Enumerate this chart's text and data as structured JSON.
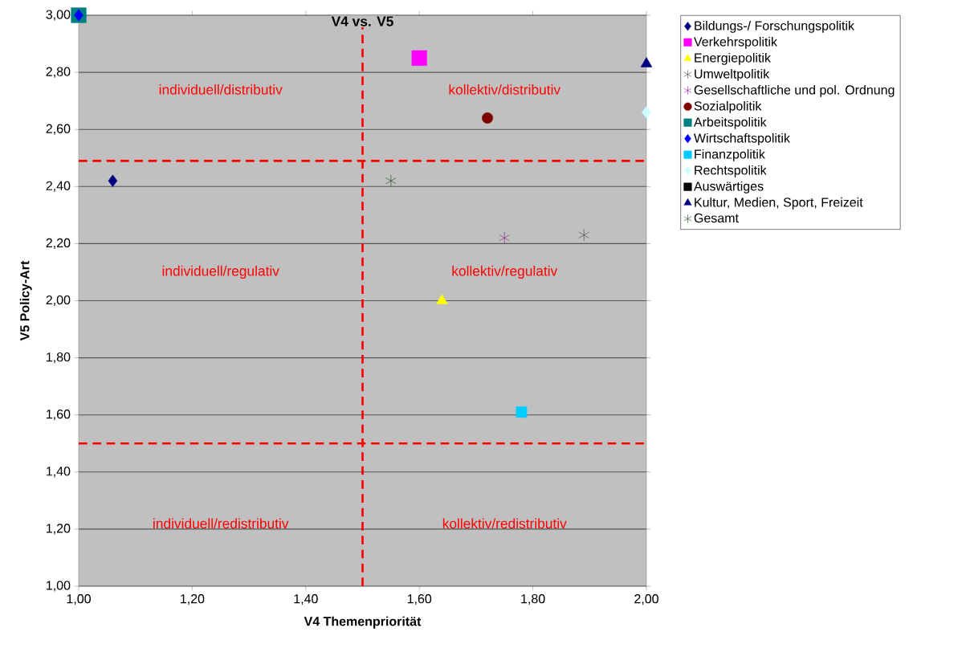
{
  "chart_data": {
    "type": "scatter",
    "title": "V4 vs. V5",
    "xlabel": "V4 Themenpriorität",
    "ylabel": "V5 Policy-Art",
    "xlim": [
      1,
      2
    ],
    "ylim": [
      1,
      3
    ],
    "xticks": [
      {
        "value": 1,
        "label": "1,00"
      },
      {
        "value": 1.2,
        "label": "1,20"
      },
      {
        "value": 1.4,
        "label": "1,40"
      },
      {
        "value": 1.6,
        "label": "1,60"
      },
      {
        "value": 1.8,
        "label": "1,80"
      },
      {
        "value": 2,
        "label": "2,00"
      }
    ],
    "yticks": [
      {
        "value": 1,
        "label": "1,00"
      },
      {
        "value": 1.2,
        "label": "1,20"
      },
      {
        "value": 1.4,
        "label": "1,40"
      },
      {
        "value": 1.6,
        "label": "1,60"
      },
      {
        "value": 1.8,
        "label": "1,80"
      },
      {
        "value": 2,
        "label": "2,00"
      },
      {
        "value": 2.2,
        "label": "2,20"
      },
      {
        "value": 2.4,
        "label": "2,40"
      },
      {
        "value": 2.6,
        "label": "2,60"
      },
      {
        "value": 2.8,
        "label": "2,80"
      },
      {
        "value": 3,
        "label": "3,00"
      }
    ],
    "grid": "y",
    "legend": "right",
    "series": [
      {
        "name": "Bildungs-/ Forschungspolitik",
        "color": "#000080",
        "marker": "diamond",
        "x": [
          1.06
        ],
        "values": [
          2.42
        ]
      },
      {
        "name": "Verkehrspolitik",
        "color": "#ff00ff",
        "marker": "square",
        "x": [
          1.6
        ],
        "values": [
          2.85
        ]
      },
      {
        "name": "Energiepolitik",
        "color": "#ffff00",
        "marker": "triangle",
        "x": [
          1.64
        ],
        "values": [
          2.0
        ]
      },
      {
        "name": "Umweltpolitik",
        "color": "#333333",
        "marker": "cross",
        "x": [
          1.89
        ],
        "values": [
          2.23
        ]
      },
      {
        "name": "Gesellschaftliche und pol. Ordnung",
        "color": "#800080",
        "marker": "cross",
        "x": [
          1.75
        ],
        "values": [
          2.22
        ]
      },
      {
        "name": "Sozialpolitik",
        "color": "#800000",
        "marker": "circle",
        "x": [
          1.72
        ],
        "values": [
          2.64
        ]
      },
      {
        "name": "Arbeitspolitik",
        "color": "#008080",
        "marker": "square",
        "x": [
          1.0
        ],
        "values": [
          3.0
        ]
      },
      {
        "name": "Wirtschaftspolitik",
        "color": "#0000ff",
        "marker": "diamond",
        "x": [
          1.0
        ],
        "values": [
          3.0
        ]
      },
      {
        "name": "Finanzpolitik",
        "color": "#00ccff",
        "x": [
          1.78
        ],
        "values": [
          1.61
        ]
      },
      {
        "name": "Rechtspolitik",
        "color": "#ccffff",
        "marker": "diamond",
        "x": [
          2.0
        ],
        "values": [
          2.66
        ]
      },
      {
        "name": "Auswärtiges",
        "color": "#000000",
        "marker": "square",
        "x": [
          null
        ],
        "values": [
          null
        ]
      },
      {
        "name": "Kultur, Medien, Sport, Freizeit",
        "color": "#000080",
        "marker": "triangle",
        "x": [
          2.0
        ],
        "values": [
          2.83
        ]
      },
      {
        "name": "Gesamt",
        "color": "#003300",
        "marker": "cross",
        "x": [
          1.55
        ],
        "values": [
          2.42
        ]
      }
    ],
    "ref_lines": [
      {
        "axis": "x",
        "value": 1.5,
        "color": "#ff0000",
        "line_style": "dashed"
      },
      {
        "axis": "y",
        "value": 2.49,
        "color": "#ff0000",
        "line_style": "dashed"
      },
      {
        "axis": "y",
        "value": 1.5,
        "color": "#ff0000",
        "line_style": "dashed"
      }
    ],
    "annotations": [
      "individuell/distributiv",
      "kollektiv/distributiv",
      "individuell/regulativ",
      "kollektiv/regulativ",
      "individuell/redistributiv",
      "kollektiv/redistributiv"
    ]
  }
}
